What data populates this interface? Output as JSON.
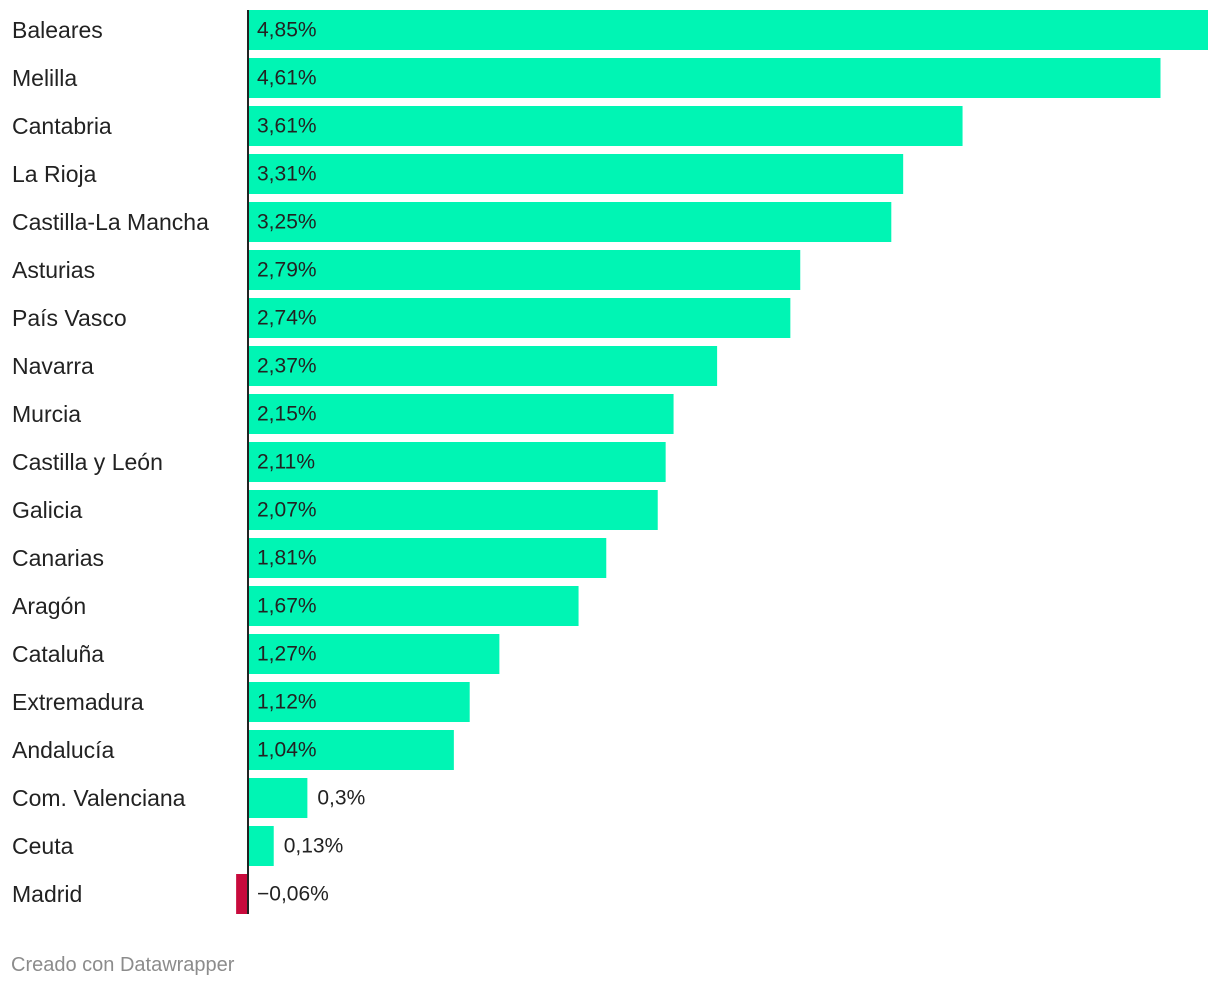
{
  "chart_data": {
    "type": "bar",
    "orientation": "horizontal",
    "categories": [
      "Baleares",
      "Melilla",
      "Cantabria",
      "La Rioja",
      "Castilla-La Mancha",
      "Asturias",
      "País Vasco",
      "Navarra",
      "Murcia",
      "Castilla y León",
      "Galicia",
      "Canarias",
      "Aragón",
      "Cataluña",
      "Extremadura",
      "Andalucía",
      "Com. Valenciana",
      "Ceuta",
      "Madrid"
    ],
    "values": [
      4.85,
      4.61,
      3.61,
      3.31,
      3.25,
      2.79,
      2.74,
      2.37,
      2.15,
      2.11,
      2.07,
      1.81,
      1.67,
      1.27,
      1.12,
      1.04,
      0.3,
      0.13,
      -0.06
    ],
    "value_labels": [
      "4,85%",
      "4,61%",
      "3,61%",
      "3,31%",
      "3,25%",
      "2,79%",
      "2,74%",
      "2,37%",
      "2,15%",
      "2,11%",
      "2,07%",
      "1,81%",
      "1,67%",
      "1,27%",
      "1,12%",
      "1,04%",
      "0,3%",
      "0,13%",
      "−0,06%"
    ],
    "unit": "%",
    "xlim": [
      -0.06,
      4.85
    ],
    "colors": {
      "positive": "#00f5b4",
      "negative": "#c80a3c",
      "axis": "#222222"
    }
  },
  "footer": {
    "credit": "Creado con Datawrapper"
  }
}
